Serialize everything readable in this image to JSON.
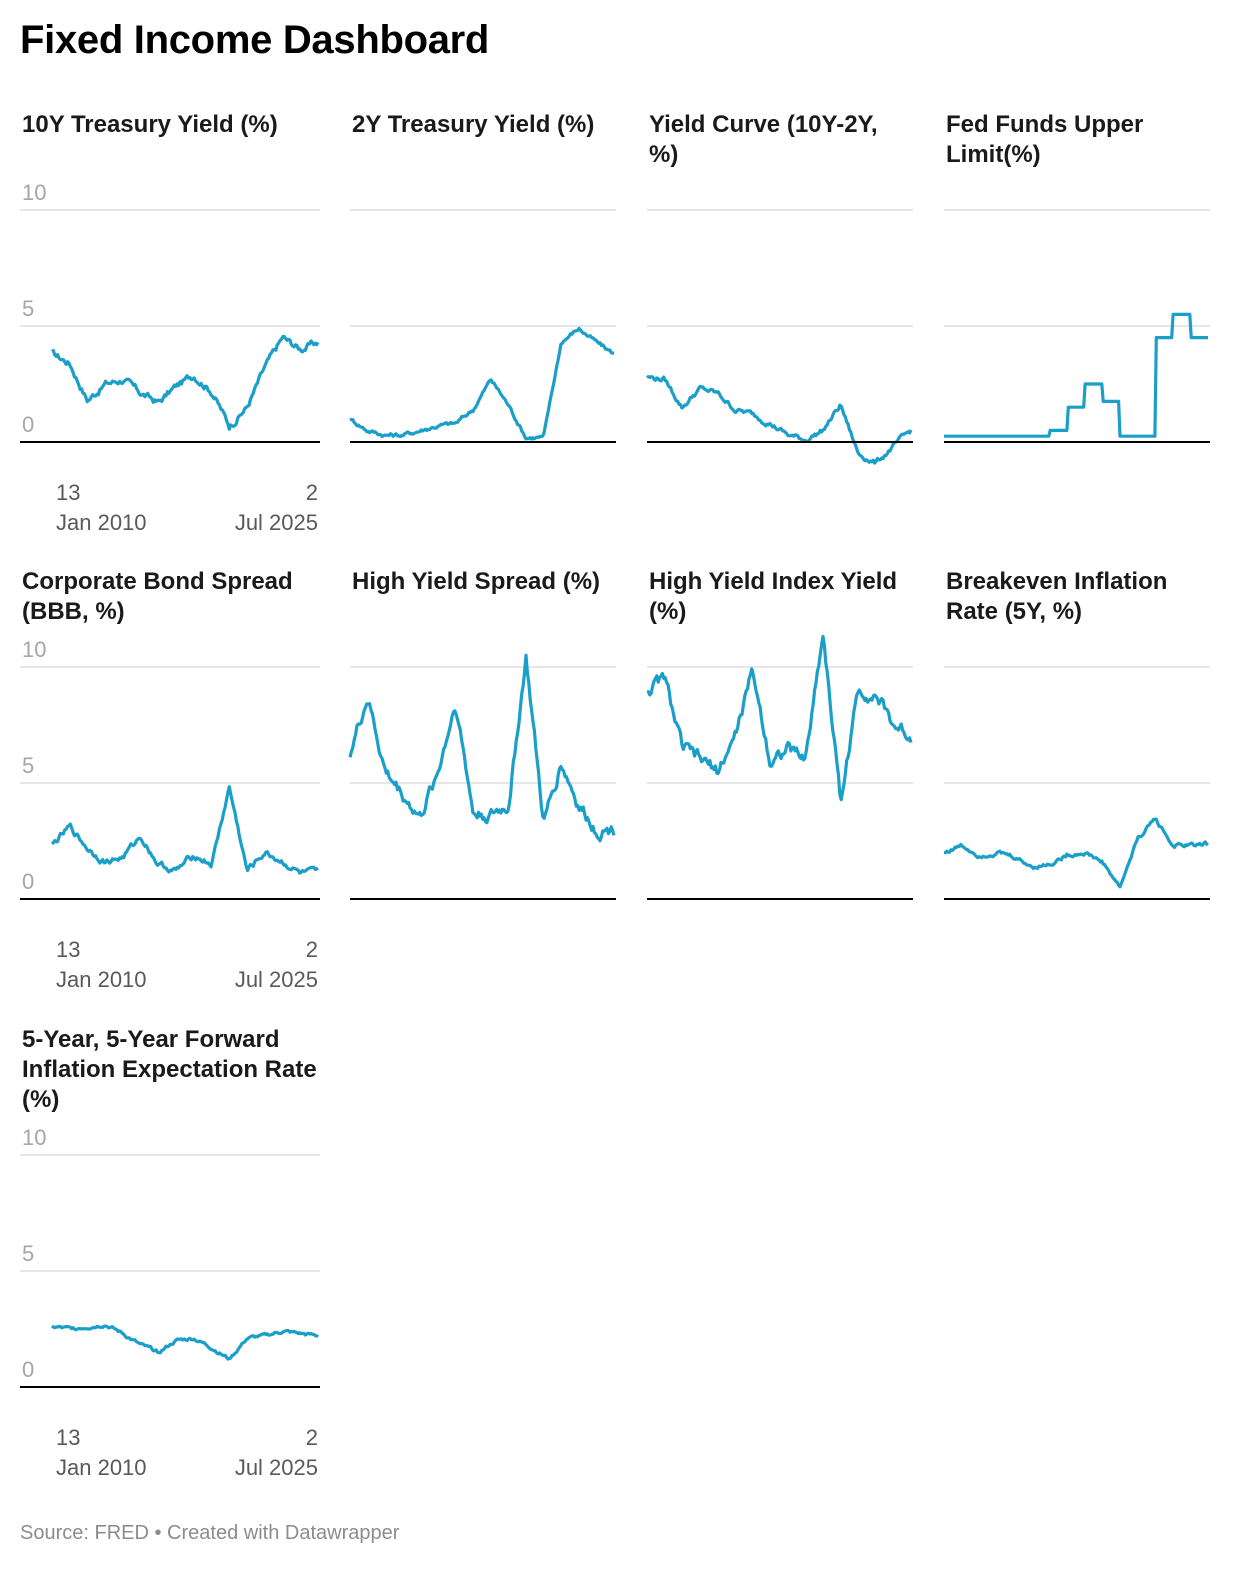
{
  "title": "Fixed Income Dashboard",
  "source": "Source: FRED • Created with Datawrapper",
  "colors": {
    "line": "#1b9fc9",
    "grid": "#dddddd",
    "axis": "#000000",
    "tick": "#a6a6a6",
    "date": "#595959"
  },
  "chart_data": [
    {
      "type": "line",
      "title": "10Y Treasury Yield (%)",
      "x": [
        "2010",
        "2011",
        "2012",
        "2013",
        "2014",
        "2015",
        "2016",
        "2017",
        "2018",
        "2019",
        "2020",
        "2021",
        "2022",
        "2023",
        "2024",
        "2025"
      ],
      "y": [
        3.8,
        3.4,
        1.8,
        2.5,
        2.7,
        2.1,
        1.7,
        2.4,
        2.9,
        2.2,
        0.7,
        1.5,
        3.2,
        4.5,
        4.0,
        4.3
      ],
      "ylim": [
        0,
        10
      ],
      "yticks": [
        "0",
        "5",
        "10"
      ],
      "x_start_label": [
        "13",
        "Jan 2010"
      ],
      "x_end_label": [
        "2",
        "Jul 2025"
      ]
    },
    {
      "type": "line",
      "title": "2Y Treasury Yield (%)",
      "x": [
        "2010",
        "2011",
        "2012",
        "2013",
        "2014",
        "2015",
        "2016",
        "2017",
        "2018",
        "2019",
        "2020",
        "2021",
        "2022",
        "2023",
        "2024",
        "2025"
      ],
      "y": [
        1.0,
        0.5,
        0.3,
        0.3,
        0.5,
        0.7,
        0.8,
        1.4,
        2.7,
        1.6,
        0.2,
        0.2,
        4.3,
        4.9,
        4.3,
        3.8
      ],
      "ylim": [
        0,
        10
      ],
      "yticks": [
        "0",
        "5",
        "10"
      ]
    },
    {
      "type": "line",
      "title": "Yield Curve (10Y-2Y, %)",
      "x": [
        "2010",
        "2011",
        "2012",
        "2013",
        "2014",
        "2015",
        "2016",
        "2017",
        "2018",
        "2019",
        "2020",
        "2021",
        "2022",
        "2023",
        "2024",
        "2025"
      ],
      "y": [
        2.8,
        2.7,
        1.5,
        2.3,
        2.1,
        1.4,
        1.2,
        0.8,
        0.3,
        0.1,
        0.5,
        1.6,
        -0.5,
        -0.9,
        -0.2,
        0.5
      ],
      "ylim": [
        0,
        10
      ],
      "yticks": [
        "0",
        "5",
        "10"
      ]
    },
    {
      "type": "line",
      "title": "Fed Funds Upper Limit(%)",
      "x": [
        "2010",
        "2011",
        "2012",
        "2013",
        "2014",
        "2015",
        "2016",
        "2017",
        "2018",
        "2019",
        "2020",
        "2021",
        "2022",
        "2023",
        "2024",
        "2025"
      ],
      "y": [
        0.25,
        0.25,
        0.25,
        0.25,
        0.25,
        0.25,
        0.5,
        1.5,
        2.5,
        1.75,
        0.25,
        0.25,
        4.5,
        5.5,
        4.5,
        4.5
      ],
      "ylim": [
        0,
        10
      ],
      "yticks": [
        "0",
        "5",
        "10"
      ]
    },
    {
      "type": "line",
      "title": "Corporate Bond Spread (BBB, %)",
      "x": [
        "2010",
        "2011",
        "2012",
        "2013",
        "2014",
        "2015",
        "2016",
        "2017",
        "2018",
        "2019",
        "2020",
        "2021",
        "2022",
        "2023",
        "2024",
        "2025"
      ],
      "y": [
        2.3,
        3.1,
        2.2,
        1.6,
        1.8,
        2.7,
        1.5,
        1.2,
        1.9,
        1.5,
        4.8,
        1.2,
        2.0,
        1.6,
        1.1,
        1.1
      ],
      "ylim": [
        0,
        10
      ],
      "yticks": [
        "0",
        "5",
        "10"
      ],
      "x_start_label": [
        "13",
        "Jan 2010"
      ],
      "x_end_label": [
        "2",
        "Jul 2025"
      ]
    },
    {
      "type": "line",
      "title": "High Yield Spread (%)",
      "x": [
        "2010",
        "2011",
        "2012",
        "2013",
        "2014",
        "2015",
        "2016",
        "2017",
        "2018",
        "2019",
        "2020",
        "2021",
        "2022",
        "2023",
        "2024",
        "2025"
      ],
      "y": [
        6.3,
        8.7,
        5.5,
        4.5,
        3.5,
        5.5,
        8.5,
        3.7,
        3.6,
        4.0,
        10.4,
        3.2,
        5.9,
        4.0,
        3.0,
        3.0
      ],
      "ylim": [
        0,
        10
      ],
      "yticks": [
        "0",
        "5",
        "10"
      ]
    },
    {
      "type": "line",
      "title": "High Yield Index Yield (%)",
      "x": [
        "2010",
        "2011",
        "2012",
        "2013",
        "2014",
        "2015",
        "2016",
        "2017",
        "2018",
        "2019",
        "2020",
        "2021",
        "2022",
        "2023",
        "2024",
        "2025"
      ],
      "y": [
        9.0,
        9.5,
        6.5,
        6.0,
        5.5,
        7.0,
        9.8,
        6.0,
        6.5,
        6.0,
        11.5,
        4.2,
        9.0,
        8.8,
        7.5,
        7.0
      ],
      "ylim": [
        0,
        10
      ],
      "yticks": [
        "0",
        "5",
        "10"
      ]
    },
    {
      "type": "line",
      "title": "Breakeven Inflation Rate (5Y, %)",
      "x": [
        "2010",
        "2011",
        "2012",
        "2013",
        "2014",
        "2015",
        "2016",
        "2017",
        "2018",
        "2019",
        "2020",
        "2021",
        "2022",
        "2023",
        "2024",
        "2025"
      ],
      "y": [
        2.0,
        2.3,
        1.9,
        2.0,
        1.8,
        1.4,
        1.5,
        1.9,
        2.0,
        1.6,
        0.5,
        2.6,
        3.5,
        2.3,
        2.3,
        2.4
      ],
      "ylim": [
        0,
        10
      ],
      "yticks": [
        "0",
        "5",
        "10"
      ]
    },
    {
      "type": "line",
      "title": "5-Year, 5-Year Forward Inflation Expectation Rate (%)",
      "x": [
        "2010",
        "2011",
        "2012",
        "2013",
        "2014",
        "2015",
        "2016",
        "2017",
        "2018",
        "2019",
        "2020",
        "2021",
        "2022",
        "2023",
        "2024",
        "2025"
      ],
      "y": [
        2.6,
        2.5,
        2.6,
        2.7,
        2.3,
        1.8,
        1.5,
        2.0,
        2.1,
        1.7,
        1.2,
        2.1,
        2.2,
        2.4,
        2.3,
        2.2
      ],
      "ylim": [
        0,
        10
      ],
      "yticks": [
        "0",
        "5",
        "10"
      ],
      "x_start_label": [
        "13",
        "Jan 2010"
      ],
      "x_end_label": [
        "2",
        "Jul 2025"
      ]
    }
  ]
}
